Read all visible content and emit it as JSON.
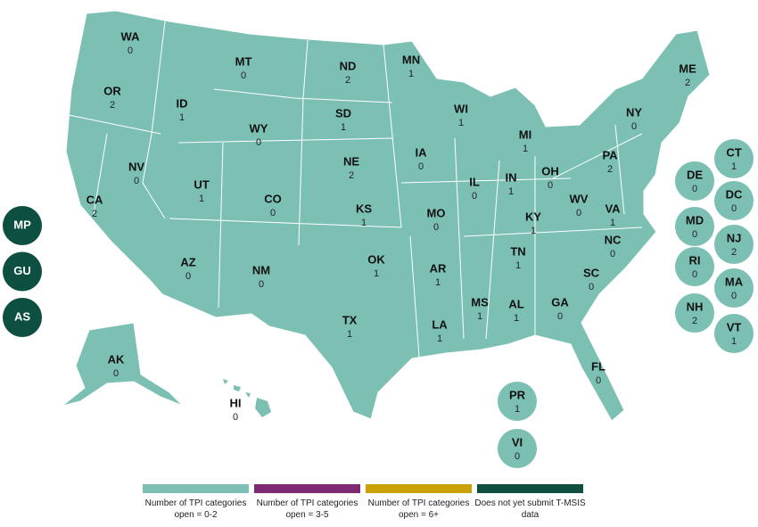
{
  "states": [
    {
      "abbr": "WA",
      "value": 0
    },
    {
      "abbr": "OR",
      "value": 2
    },
    {
      "abbr": "CA",
      "value": 2
    },
    {
      "abbr": "NV",
      "value": 0
    },
    {
      "abbr": "ID",
      "value": 1
    },
    {
      "abbr": "MT",
      "value": 0
    },
    {
      "abbr": "WY",
      "value": 0
    },
    {
      "abbr": "UT",
      "value": 1
    },
    {
      "abbr": "AZ",
      "value": 0
    },
    {
      "abbr": "CO",
      "value": 0
    },
    {
      "abbr": "NM",
      "value": 0
    },
    {
      "abbr": "ND",
      "value": 2
    },
    {
      "abbr": "SD",
      "value": 1
    },
    {
      "abbr": "NE",
      "value": 2
    },
    {
      "abbr": "KS",
      "value": 1
    },
    {
      "abbr": "OK",
      "value": 1
    },
    {
      "abbr": "TX",
      "value": 1
    },
    {
      "abbr": "MN",
      "value": 1
    },
    {
      "abbr": "IA",
      "value": 0
    },
    {
      "abbr": "MO",
      "value": 0
    },
    {
      "abbr": "AR",
      "value": 1
    },
    {
      "abbr": "LA",
      "value": 1
    },
    {
      "abbr": "WI",
      "value": 1
    },
    {
      "abbr": "IL",
      "value": 0
    },
    {
      "abbr": "MS",
      "value": 1
    },
    {
      "abbr": "MI",
      "value": 1
    },
    {
      "abbr": "IN",
      "value": 1
    },
    {
      "abbr": "KY",
      "value": 1
    },
    {
      "abbr": "TN",
      "value": 1
    },
    {
      "abbr": "AL",
      "value": 1
    },
    {
      "abbr": "OH",
      "value": 0
    },
    {
      "abbr": "GA",
      "value": 0
    },
    {
      "abbr": "FL",
      "value": 0
    },
    {
      "abbr": "SC",
      "value": 0
    },
    {
      "abbr": "NC",
      "value": 0
    },
    {
      "abbr": "VA",
      "value": 1
    },
    {
      "abbr": "WV",
      "value": 0
    },
    {
      "abbr": "PA",
      "value": 2
    },
    {
      "abbr": "NY",
      "value": 0
    },
    {
      "abbr": "ME",
      "value": 2
    },
    {
      "abbr": "AK",
      "value": 0
    },
    {
      "abbr": "HI",
      "value": 0
    }
  ],
  "small_states": [
    {
      "abbr": "CT",
      "value": 1
    },
    {
      "abbr": "DE",
      "value": 0
    },
    {
      "abbr": "DC",
      "value": 0
    },
    {
      "abbr": "MD",
      "value": 0
    },
    {
      "abbr": "NJ",
      "value": 2
    },
    {
      "abbr": "RI",
      "value": 0
    },
    {
      "abbr": "MA",
      "value": 0
    },
    {
      "abbr": "NH",
      "value": 2
    },
    {
      "abbr": "VT",
      "value": 1
    },
    {
      "abbr": "PR",
      "value": 1
    },
    {
      "abbr": "VI",
      "value": 0
    }
  ],
  "territories_no_data": [
    "MP",
    "GU",
    "AS"
  ],
  "legend": [
    {
      "label": "Number of TPI categories open = 0-2",
      "color": "#7cc0b4"
    },
    {
      "label": "Number of TPI categories open = 3-5",
      "color": "#7d2a73"
    },
    {
      "label": "Number of TPI categories open = 6+",
      "color": "#c9a208"
    },
    {
      "label": "Does not yet submit T-MSIS data",
      "color": "#0d4f41"
    }
  ]
}
